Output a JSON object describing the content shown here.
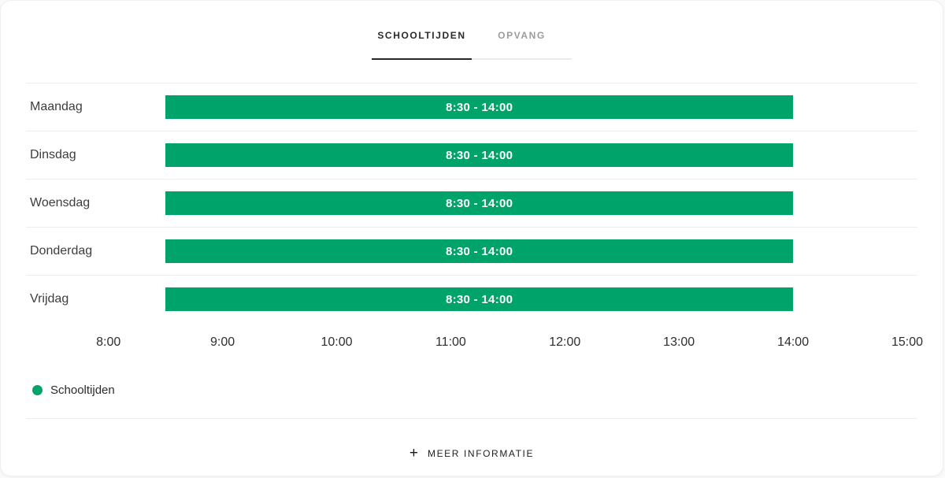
{
  "tabs": {
    "items": [
      {
        "label": "SCHOOLTIJDEN",
        "active": true
      },
      {
        "label": "OPVANG",
        "active": false
      }
    ]
  },
  "chart_data": {
    "type": "bar",
    "orientation": "horizontal-timeline",
    "categories": [
      "Maandag",
      "Dinsdag",
      "Woensdag",
      "Donderdag",
      "Vrijdag"
    ],
    "series": [
      {
        "name": "Schooltijden",
        "color": "#00a46b",
        "intervals": [
          {
            "day": "Maandag",
            "start": "8:30",
            "end": "14:00",
            "label": "8:30 - 14:00"
          },
          {
            "day": "Dinsdag",
            "start": "8:30",
            "end": "14:00",
            "label": "8:30 - 14:00"
          },
          {
            "day": "Woensdag",
            "start": "8:30",
            "end": "14:00",
            "label": "8:30 - 14:00"
          },
          {
            "day": "Donderdag",
            "start": "8:30",
            "end": "14:00",
            "label": "8:30 - 14:00"
          },
          {
            "day": "Vrijdag",
            "start": "8:30",
            "end": "14:00",
            "label": "8:30 - 14:00"
          }
        ]
      }
    ],
    "x_ticks": [
      "8:00",
      "9:00",
      "10:00",
      "11:00",
      "12:00",
      "13:00",
      "14:00",
      "15:00"
    ],
    "xlim_hours": [
      7.3,
      15.1
    ],
    "grid": false,
    "legend_position": "bottom-left"
  },
  "legend": {
    "items": [
      {
        "label": "Schooltijden",
        "color": "#00a46b"
      }
    ]
  },
  "footer": {
    "plus_glyph": "+",
    "more_info_label": "MEER INFORMATIE"
  },
  "colors": {
    "accent_green": "#00a46b",
    "tab_active": "#2a2a2a",
    "tab_inactive": "#9b9b9b",
    "divider": "#ededed"
  }
}
